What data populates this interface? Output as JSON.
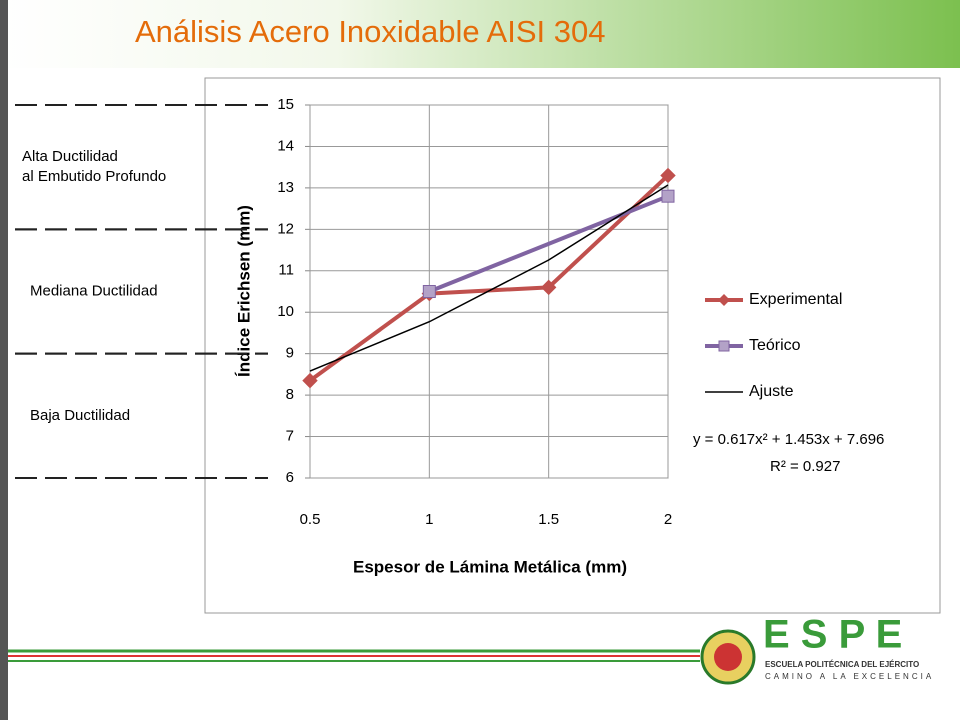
{
  "slide_title": "Análisis Acero Inoxidable AISI 304",
  "chart_data": {
    "type": "line",
    "x_label": "Espesor de Lámina Metálica (mm)",
    "y_label": "Índice Erichsen (mm)",
    "xlim": [
      0.5,
      2
    ],
    "xticks": [
      0.5,
      1,
      1.5,
      2
    ],
    "ylim": [
      6,
      15
    ],
    "yticks": [
      6,
      7,
      8,
      9,
      10,
      11,
      12,
      13,
      14,
      15
    ],
    "grid": true,
    "legend": "right",
    "series": [
      {
        "name": "Experimental",
        "color": "#c0504d",
        "marker": "diamond",
        "x": [
          0.5,
          1,
          1.5,
          2
        ],
        "values": [
          8.35,
          10.45,
          10.6,
          13.3
        ]
      },
      {
        "name": "Teórico",
        "color": "#8064a2",
        "marker": "square",
        "x": [
          1,
          2
        ],
        "values": [
          10.5,
          12.8
        ]
      },
      {
        "name": "Ajuste",
        "color": "#000000",
        "marker": "none",
        "x": [
          0.5,
          1,
          1.5,
          2
        ],
        "values": [
          8.58,
          9.77,
          11.26,
          13.07
        ]
      }
    ],
    "equation": "y = 0.617x² + 1.453x + 7.696",
    "r_squared": "R² = 0.927",
    "zones": [
      {
        "lines": [
          "Alta Ductilidad",
          "al Embutido Profundo"
        ],
        "from": 12,
        "to": 15
      },
      {
        "lines": [
          "Mediana Ductilidad"
        ],
        "from": 9,
        "to": 12
      },
      {
        "lines": [
          "Baja Ductilidad"
        ],
        "from": 6,
        "to": 9
      }
    ]
  },
  "logo": {
    "letters": "E S P E",
    "school": "ESCUELA POLITÉCNICA DEL EJÉRCITO",
    "motto": "CAMINO A LA EXCELENCIA"
  }
}
